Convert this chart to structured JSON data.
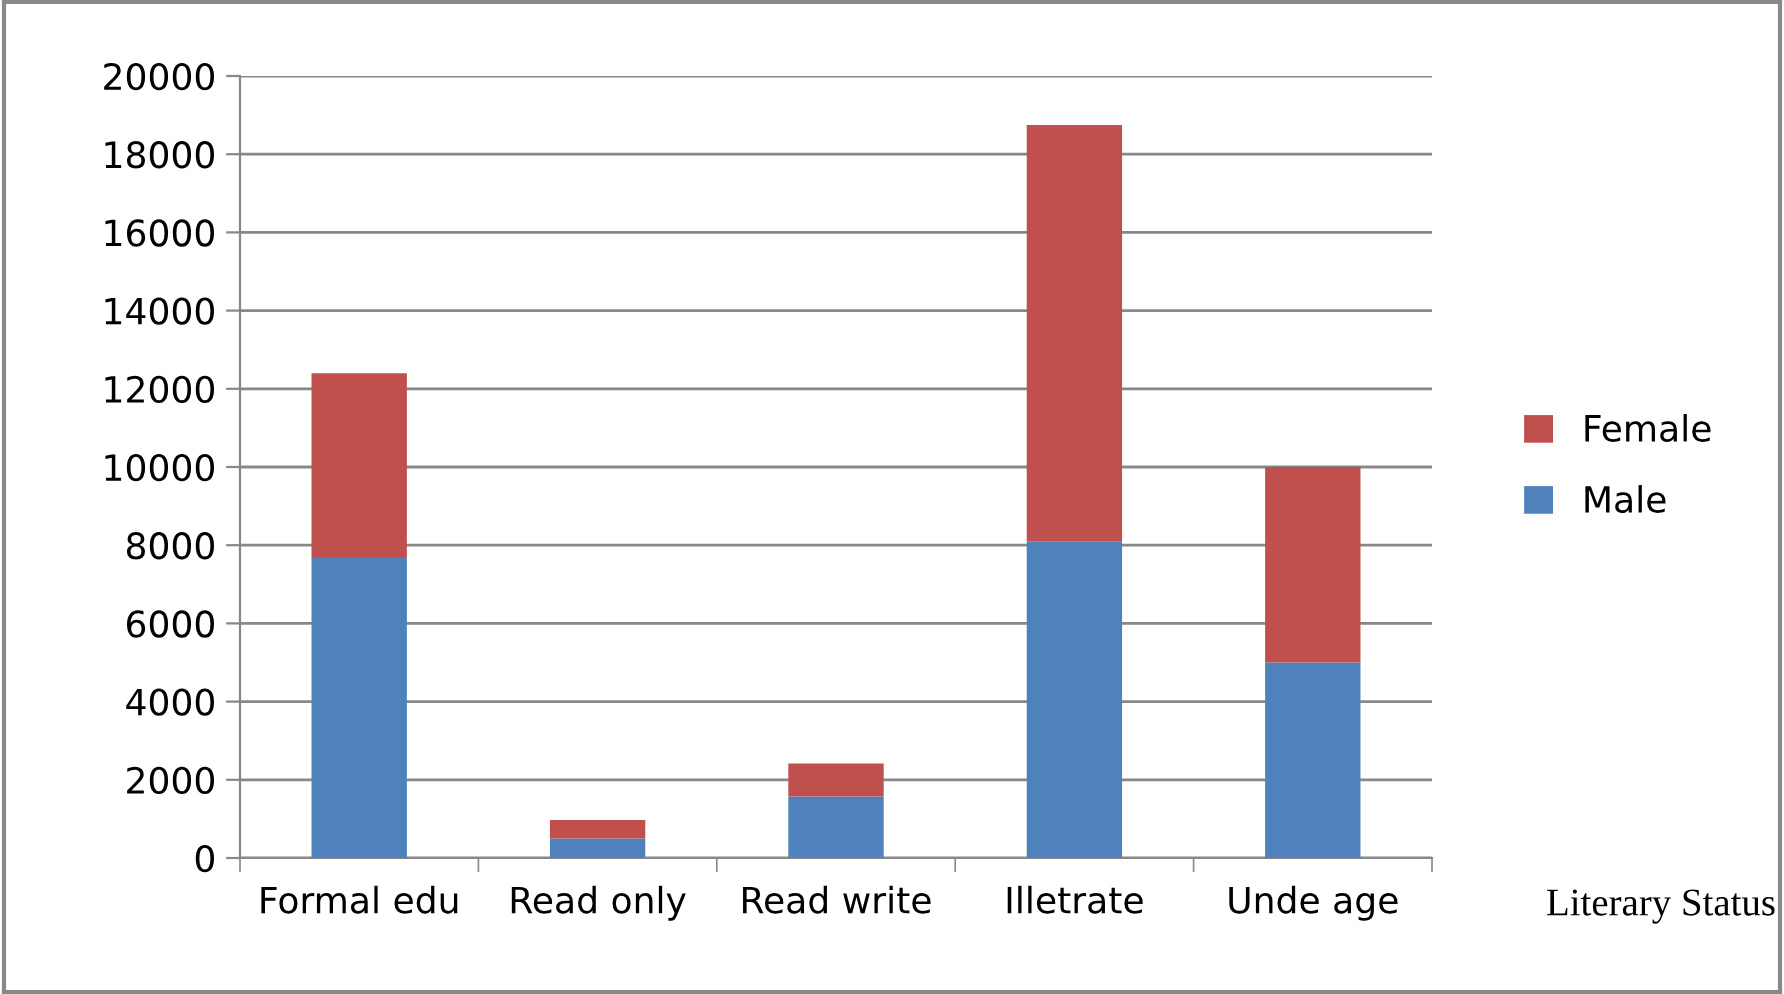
{
  "chart_data": {
    "type": "bar",
    "stacked": true,
    "xlabel": "Literary Status",
    "categories": [
      "Formal edu",
      "Read only",
      "Read write",
      "Illetrate",
      "Unde age"
    ],
    "series": [
      {
        "name": "Male",
        "color": "#4f81bd",
        "values": [
          7700,
          500,
          1570,
          8100,
          5000
        ]
      },
      {
        "name": "Female",
        "color": "#c0504d",
        "values": [
          4700,
          470,
          850,
          10650,
          5000
        ]
      }
    ],
    "ylim": [
      0,
      20000
    ],
    "yticks": [
      0,
      2000,
      4000,
      6000,
      8000,
      10000,
      12000,
      14000,
      16000,
      18000,
      20000
    ],
    "grid": "y",
    "legend": "right"
  }
}
